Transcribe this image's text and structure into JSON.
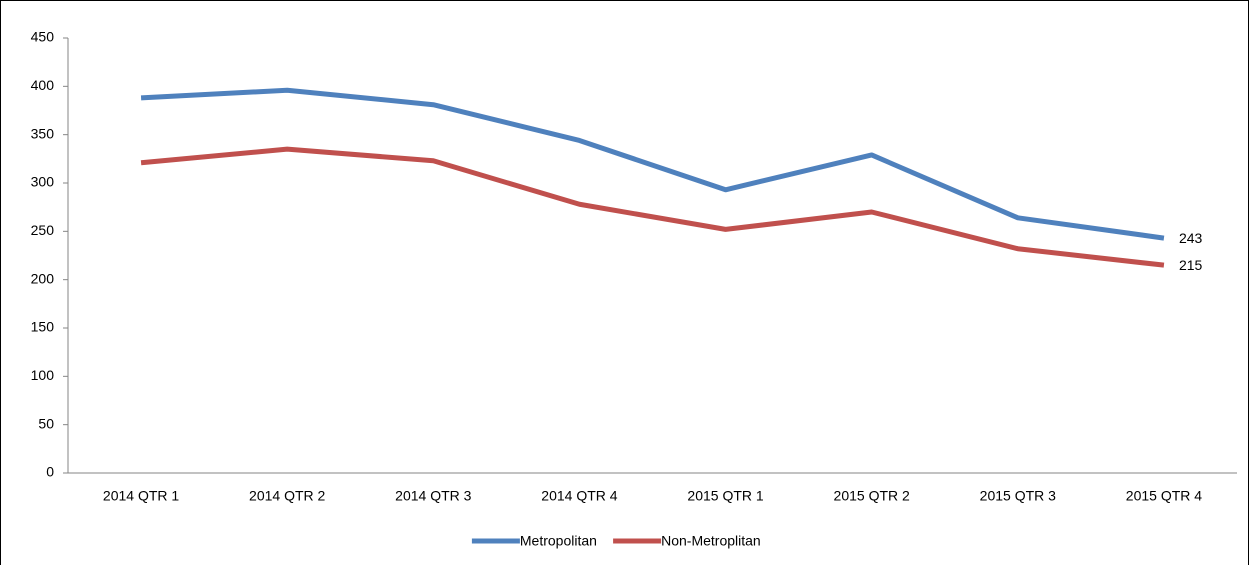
{
  "chart_data": {
    "type": "line",
    "categories": [
      "2014 QTR 1",
      "2014 QTR 2",
      "2014 QTR 3",
      "2014 QTR 4",
      "2015 QTR 1",
      "2015 QTR 2",
      "2015 QTR 3",
      "2015 QTR 4"
    ],
    "series": [
      {
        "name": "Metropolitan",
        "color": "#4f81bd",
        "values": [
          388,
          396,
          381,
          344,
          293,
          329,
          264,
          243
        ]
      },
      {
        "name": "Non-Metroplitan",
        "color": "#c0504d",
        "values": [
          321,
          335,
          323,
          278,
          252,
          270,
          232,
          215
        ]
      }
    ],
    "ylim": [
      0,
      450
    ],
    "yticks": [
      0,
      50,
      100,
      150,
      200,
      250,
      300,
      350,
      400,
      450
    ],
    "grid": false,
    "legend": "bottom"
  }
}
